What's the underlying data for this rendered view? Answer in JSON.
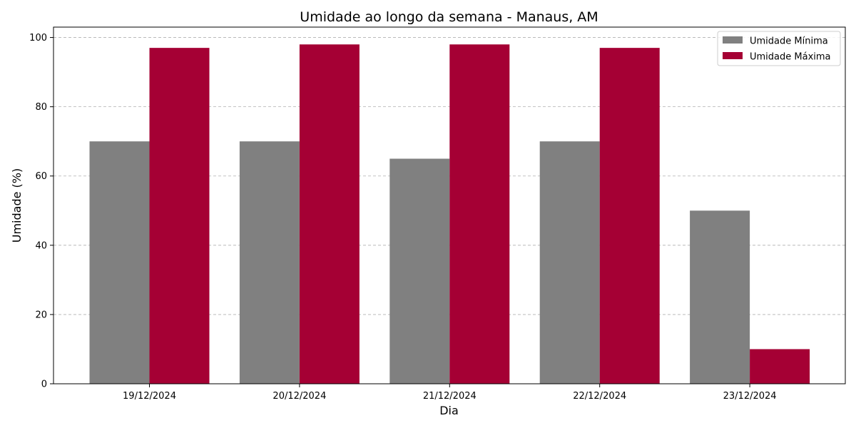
{
  "chart_data": {
    "type": "bar",
    "title": "Umidade ao longo da semana - Manaus, AM",
    "xlabel": "Dia",
    "ylabel": "Umidade (%)",
    "categories": [
      "19/12/2024",
      "20/12/2024",
      "21/12/2024",
      "22/12/2024",
      "23/12/2024"
    ],
    "series": [
      {
        "name": "Umidade Mínima",
        "values": [
          70,
          70,
          65,
          70,
          50
        ],
        "color": "#808080"
      },
      {
        "name": "Umidade Máxima",
        "values": [
          97,
          98,
          98,
          97,
          10
        ],
        "color": "#a50034"
      }
    ],
    "ylim": [
      0,
      103
    ],
    "yticks": [
      0,
      20,
      40,
      60,
      80,
      100
    ],
    "grid": "y-dashed",
    "legend_position": "top-right"
  }
}
